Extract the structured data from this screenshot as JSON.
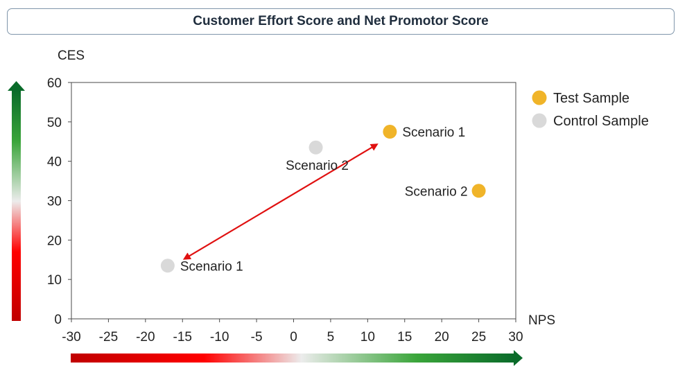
{
  "chart_data": {
    "type": "scatter",
    "title": "Customer Effort Score and Net Promotor Score",
    "xlabel": "NPS",
    "ylabel": "CES",
    "xlim": [
      -30,
      30
    ],
    "ylim": [
      0,
      60
    ],
    "xticks": [
      -30,
      -25,
      -20,
      -15,
      -10,
      -5,
      0,
      5,
      10,
      15,
      20,
      25,
      30
    ],
    "yticks": [
      0,
      10,
      20,
      30,
      40,
      50,
      60
    ],
    "grid": false,
    "legend_position": "right",
    "series": [
      {
        "name": "Test Sample",
        "color": "#f0b429",
        "points": [
          {
            "x": 13,
            "y": 47.5,
            "label": "Scenario 1"
          },
          {
            "x": 25,
            "y": 32.5,
            "label": "Scenario 2"
          }
        ]
      },
      {
        "name": "Control Sample",
        "color": "#d9d9d9",
        "points": [
          {
            "x": -17,
            "y": 13.5,
            "label": "Scenario 1"
          },
          {
            "x": 3,
            "y": 43.5,
            "label": "Scenario 2"
          }
        ]
      }
    ],
    "annotations": [
      {
        "type": "double-arrow",
        "color": "#e01010",
        "from": {
          "x": -14.5,
          "y": 15.5
        },
        "to": {
          "x": 11,
          "y": 44
        }
      }
    ]
  }
}
